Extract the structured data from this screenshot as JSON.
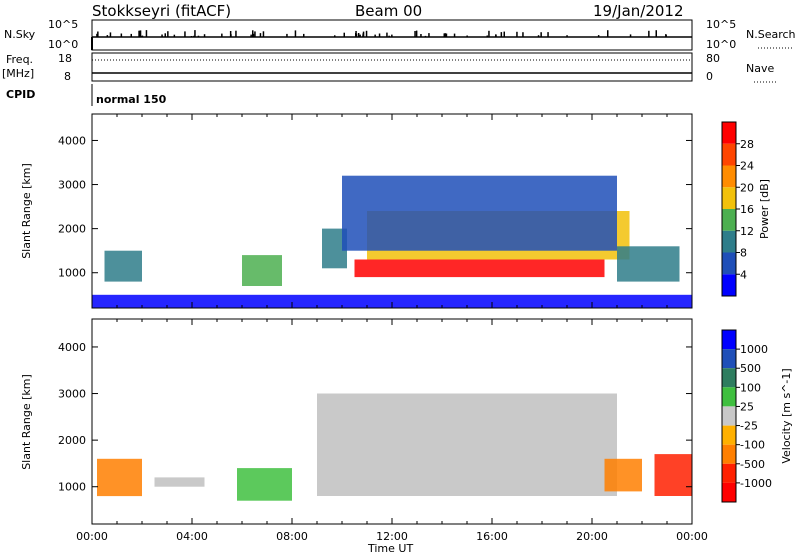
{
  "header": {
    "station": "Stokkseyri (fitACF)",
    "beam": "Beam 00",
    "date": "19/Jan/2012"
  },
  "strips": {
    "nsky_label": "N.Sky",
    "nsky_hi": "10^5",
    "nsky_lo": "10^0",
    "nsearch_hi": "10^5",
    "nsearch_lo": "10^0",
    "nsearch_label": "N.Search",
    "freq_label": "Freq.",
    "freq_unit": "[MHz]",
    "freq_hi": "18",
    "freq_lo": "8",
    "nave_hi": "80",
    "nave_lo": "0",
    "nave_label": "Nave",
    "cpid_label": "CPID",
    "cpid_value": "normal 150"
  },
  "colors": {
    "power": [
      "#0000ff",
      "#1f4fb8",
      "#2e7d8a",
      "#4caf50",
      "#f2c10b",
      "#ff8c00",
      "#ff4500",
      "#ff0000"
    ],
    "velocity": [
      "#0000ff",
      "#1f4fb8",
      "#2e7d5f",
      "#3fbf3f",
      "#c8c8c8",
      "#ffb000",
      "#ff7f00",
      "#ff2000",
      "#ff0000"
    ],
    "ground_scatter": "#c0c0c0"
  },
  "chart_data": [
    {
      "type": "heatmap",
      "panel": "power",
      "xlabel": "",
      "ylabel": "Slant Range [km]",
      "y_ticks": [
        "1000",
        "2000",
        "3000",
        "4000"
      ],
      "ylim": [
        200,
        4600
      ],
      "xlim": [
        "00:00",
        "24:00"
      ],
      "colorbar_label": "Power [dB]",
      "colorbar_ticks": [
        "4",
        "8",
        "12",
        "16",
        "20",
        "24",
        "28"
      ],
      "regions": [
        {
          "t0": 0.5,
          "t1": 2.0,
          "r0": 800,
          "r1": 1500,
          "level": 2
        },
        {
          "t0": 6.0,
          "t1": 7.6,
          "r0": 700,
          "r1": 1400,
          "level": 3
        },
        {
          "t0": 9.2,
          "t1": 10.2,
          "r0": 1100,
          "r1": 2000,
          "level": 2
        },
        {
          "t0": 10.5,
          "t1": 20.5,
          "r0": 900,
          "r1": 1300,
          "level": 7
        },
        {
          "t0": 11.0,
          "t1": 21.5,
          "r0": 1300,
          "r1": 2400,
          "level": 4
        },
        {
          "t0": 10.0,
          "t1": 21.0,
          "r0": 1500,
          "r1": 3200,
          "level": 1
        },
        {
          "t0": 21.0,
          "t1": 23.5,
          "r0": 800,
          "r1": 1600,
          "level": 2
        },
        {
          "t0": 0,
          "t1": 24,
          "r0": 200,
          "r1": 500,
          "level": 0
        }
      ]
    },
    {
      "type": "heatmap",
      "panel": "velocity",
      "xlabel": "Time UT",
      "ylabel": "Slant Range [km]",
      "x_ticks": [
        "00:00",
        "04:00",
        "08:00",
        "12:00",
        "16:00",
        "20:00",
        "00:00"
      ],
      "y_ticks": [
        "1000",
        "2000",
        "3000",
        "4000"
      ],
      "ylim": [
        200,
        4600
      ],
      "xlim": [
        "00:00",
        "24:00"
      ],
      "colorbar_label": "Velocity [m s^-1]",
      "colorbar_ticks": [
        "1000",
        "500",
        "100",
        "25",
        "-25",
        "-100",
        "-500",
        "-1000"
      ],
      "regions": [
        {
          "t0": 0.2,
          "t1": 2.0,
          "r0": 800,
          "r1": 1600,
          "level": 6
        },
        {
          "t0": 2.5,
          "t1": 4.5,
          "r0": 1000,
          "r1": 1200,
          "level": 4
        },
        {
          "t0": 5.8,
          "t1": 8.0,
          "r0": 700,
          "r1": 1400,
          "level": 3
        },
        {
          "t0": 9.0,
          "t1": 21.0,
          "r0": 800,
          "r1": 3000,
          "level": 4
        },
        {
          "t0": 20.5,
          "t1": 22.0,
          "r0": 900,
          "r1": 1600,
          "level": 6
        },
        {
          "t0": 22.5,
          "t1": 24.0,
          "r0": 800,
          "r1": 1700,
          "level": 7
        }
      ]
    }
  ]
}
